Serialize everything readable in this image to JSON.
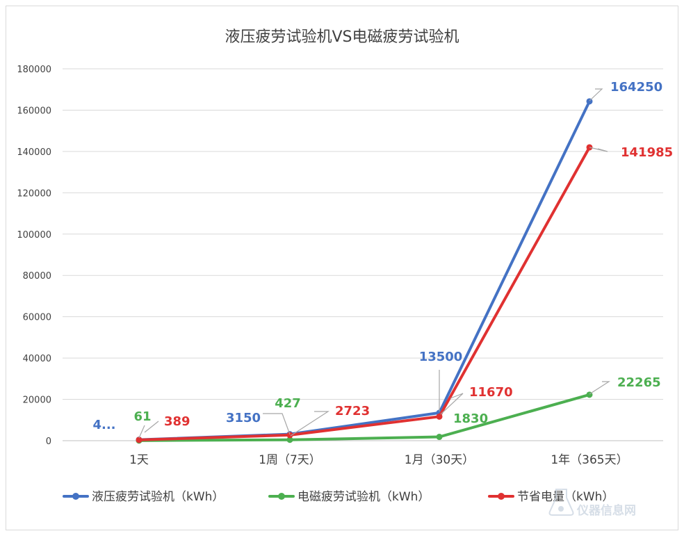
{
  "chart_data": {
    "type": "line",
    "title": "液压疲劳试验机VS电磁疲劳试验机",
    "categories": [
      "1天",
      "1周（7天）",
      "1月（30天）",
      "1年（365天）"
    ],
    "ylim": [
      0,
      180000
    ],
    "yticks": [
      "0",
      "20000",
      "40000",
      "60000",
      "80000",
      "100000",
      "120000",
      "140000",
      "160000",
      "180000"
    ],
    "grid": true,
    "legend_position": "bottom",
    "series": [
      {
        "name": "液压疲劳试验机（kWh）",
        "color": "#4472c4",
        "values": [
          450,
          3150,
          13500,
          164250
        ],
        "labels": [
          "4...",
          "3150",
          "13500",
          "164250"
        ]
      },
      {
        "name": "电磁疲劳试验机（kWh）",
        "color": "#4caf50",
        "values": [
          61,
          427,
          1830,
          22265
        ],
        "labels": [
          "61",
          "427",
          "1830",
          "22265"
        ]
      },
      {
        "name": "节省电量（kWh）",
        "color": "#e03131",
        "values": [
          389,
          2723,
          11670,
          141985
        ],
        "labels": [
          "389",
          "2723",
          "11670",
          "141985"
        ]
      }
    ]
  },
  "watermark": {
    "text": "仪器信息网",
    "icon": "flask-icon"
  }
}
